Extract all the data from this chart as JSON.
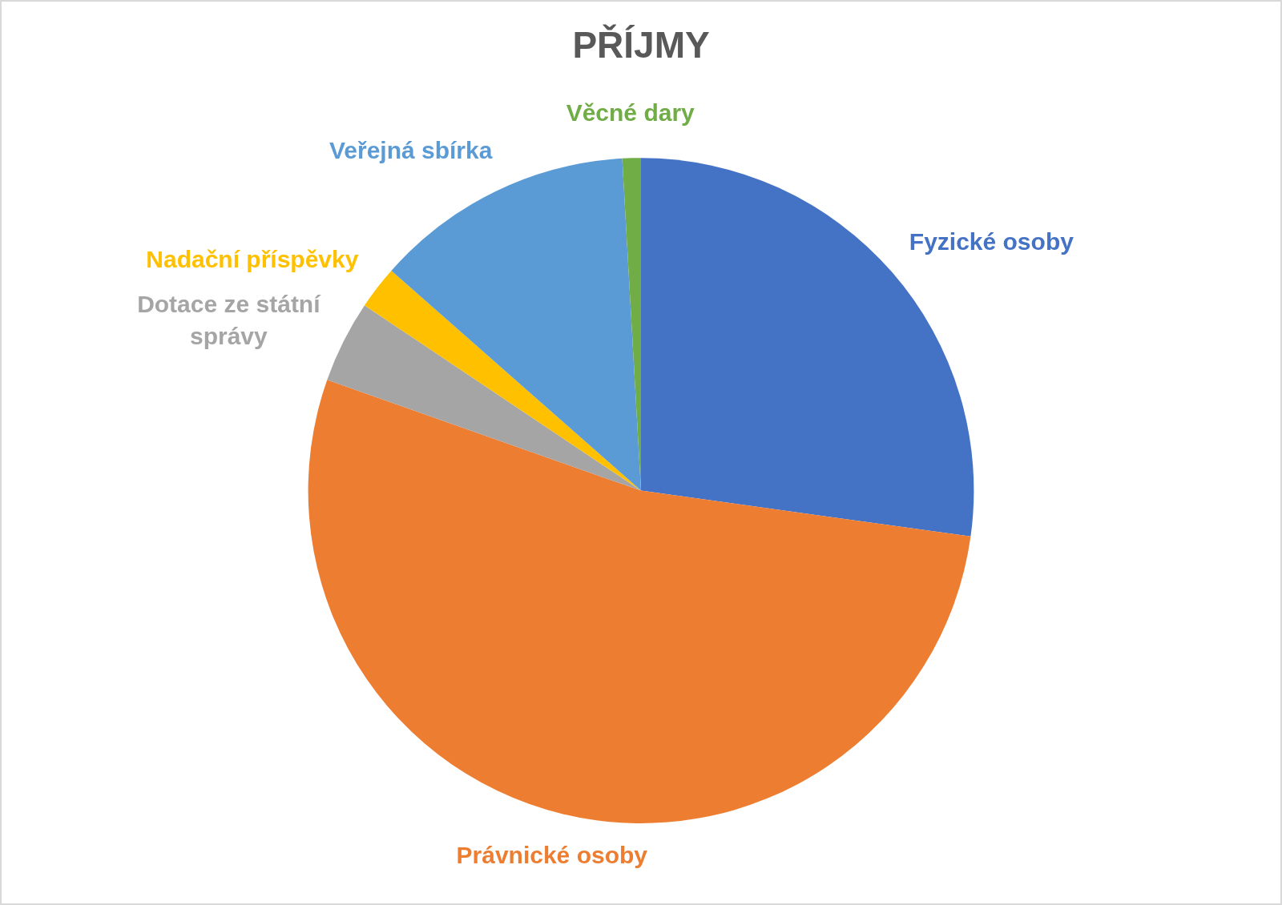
{
  "chart_data": {
    "type": "pie",
    "title": "PŘÍJMY",
    "categories": [
      "Fyzické osoby",
      "Právnické osoby",
      "Dotace ze státní správy",
      "Nadační příspěvky",
      "Veřejná sbírka",
      "Věcné dary"
    ],
    "values": [
      27.2,
      53.2,
      4.0,
      2.1,
      12.6,
      0.9
    ],
    "colors": [
      "#4472c4",
      "#ed7d31",
      "#a5a5a5",
      "#ffc000",
      "#5b9bd5",
      "#70ad47"
    ],
    "legend": false
  }
}
